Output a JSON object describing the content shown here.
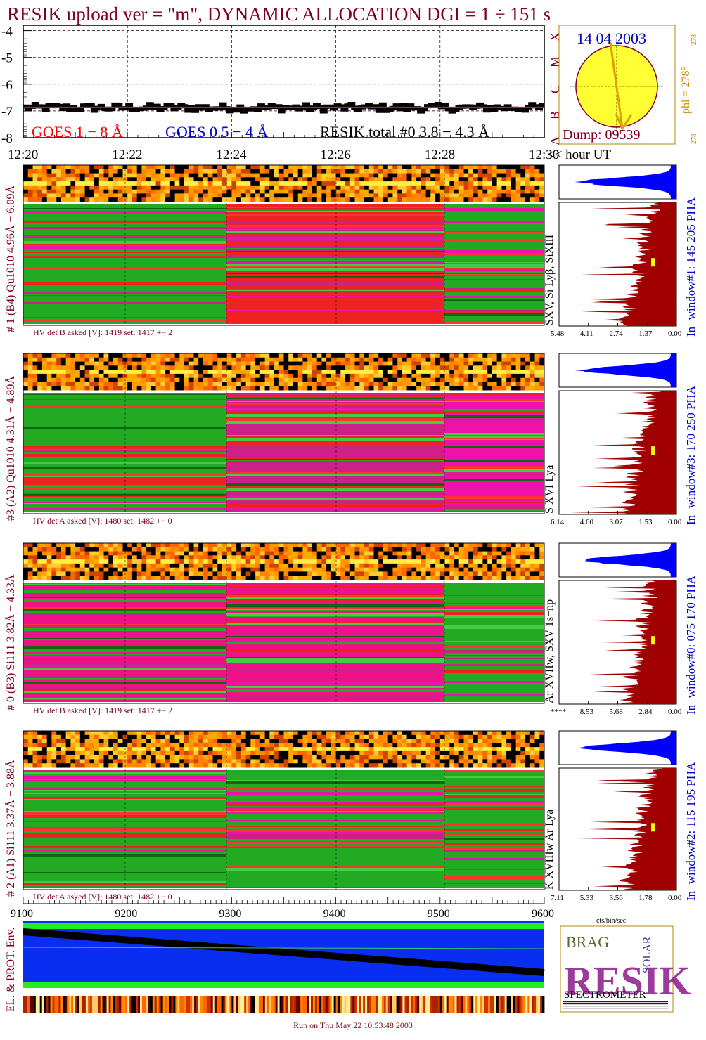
{
  "title": "RESIK upload ver = \"m\", DYNAMIC ALLOCATION  DGI =   1 ÷ 151 s",
  "colors": {
    "dark_red": "#800020",
    "goes_long": "#ff0000",
    "goes_short": "#0000cc",
    "sun_fill": "#ffff33",
    "pha_blue": "#0000ff",
    "pha_red": "#a00000",
    "green": "#22aa22",
    "magenta": "#ee11aa",
    "red": "#ee2222",
    "orange": "#ff8800",
    "env_blue": "#0a2ef0",
    "env_green": "#22ee22"
  },
  "goes_panel": {
    "y_ticks": [
      "-4",
      "-5",
      "-6",
      "-7",
      "-8"
    ],
    "x_ticks": [
      "12:20",
      "12:22",
      "12:24",
      "12:26",
      "12:28",
      "12:30"
    ],
    "x_unit": "<< hour UT",
    "class_letters": [
      "X",
      "M",
      "C",
      "B",
      "A"
    ],
    "legend_goes_long": "GOES 1 − 8 Å",
    "legend_goes_short": "GOES 0.5 − 4 Å",
    "legend_resik": "RESIK total #0  3.8 − 4.3 Å"
  },
  "sun_panel": {
    "date": "14 04 2003",
    "dump": "Dump: 09539",
    "phi": "phi = 278°",
    "phi_small": "278",
    "bottom_small": "278"
  },
  "channels": [
    {
      "id": 1,
      "left_label": "# 1 (B4) Qu1010 4.96Å − 6.09Å",
      "lines_label": "SXV, Si Lyβ, SiXIII",
      "window_label": "In−window#1:  145 205 PHA",
      "hv_label": "HV det B asked [V]:  1419 set:  1417 +−   2",
      "pha_ticks": [
        "5.48",
        "4.11",
        "2.74",
        "1.37",
        "0.00"
      ],
      "spectro_colors": [
        "#22aa22",
        "#ee2222",
        "#22aa22"
      ]
    },
    {
      "id": 3,
      "left_label": "#3 (A2) Qu1010  4.31Å − 4.89Å",
      "lines_label": "S XVI Lya",
      "window_label": "In−window#3:  170 250 PHA",
      "hv_label": "HV det A asked [V]:  1480 set:  1482 +−   0",
      "pha_ticks": [
        "6.14",
        "4.60",
        "3.07",
        "1.53",
        "0.00"
      ],
      "spectro_colors": [
        "#22aa22",
        "#cc2288",
        "#ee11aa"
      ]
    },
    {
      "id": 0,
      "left_label": "# 0 (B3) Si111  3.82Å − 4.33Å",
      "lines_label": "Ar XVIIw,  SXV  1s−np",
      "window_label": "In−window#0:  075 170 PHA",
      "hv_label": "HV det B asked [V]:  1419 set:  1417 +−   2",
      "pha_ticks": [
        "****",
        "8.53",
        "5.68",
        "2.84",
        "0.00"
      ],
      "spectro_colors": [
        "#ee1188",
        "#ee1188",
        "#22aa22"
      ]
    },
    {
      "id": 2,
      "left_label": "# 2 (A1) Si111  3.37Å − 3.88Å",
      "lines_label": "K XVIIIw   Ar Lya",
      "window_label": "In−window#2:  115 195 PHA",
      "hv_label": "HV det A asked [V]:  1480 set:  1482 +−   0",
      "pha_ticks": [
        "7.11",
        "5.33",
        "3.56",
        "1.78",
        "0.00"
      ],
      "spectro_colors": [
        "#22aa22",
        "#22aa22",
        "#22aa22"
      ]
    }
  ],
  "pha_unit": "cts/bin/sec",
  "dump_axis": {
    "ticks": [
      "9100",
      "9200",
      "9300",
      "9400",
      "9500",
      "9600"
    ]
  },
  "env_label": "EL. & PROT. Env.",
  "logo": {
    "letters_top": "BRAG",
    "letters_main": "RESIK",
    "side": "SOLAR",
    "caption": "SPECTROMETER"
  },
  "footer": "Run on Thu May 22 10:53:48 2003"
}
